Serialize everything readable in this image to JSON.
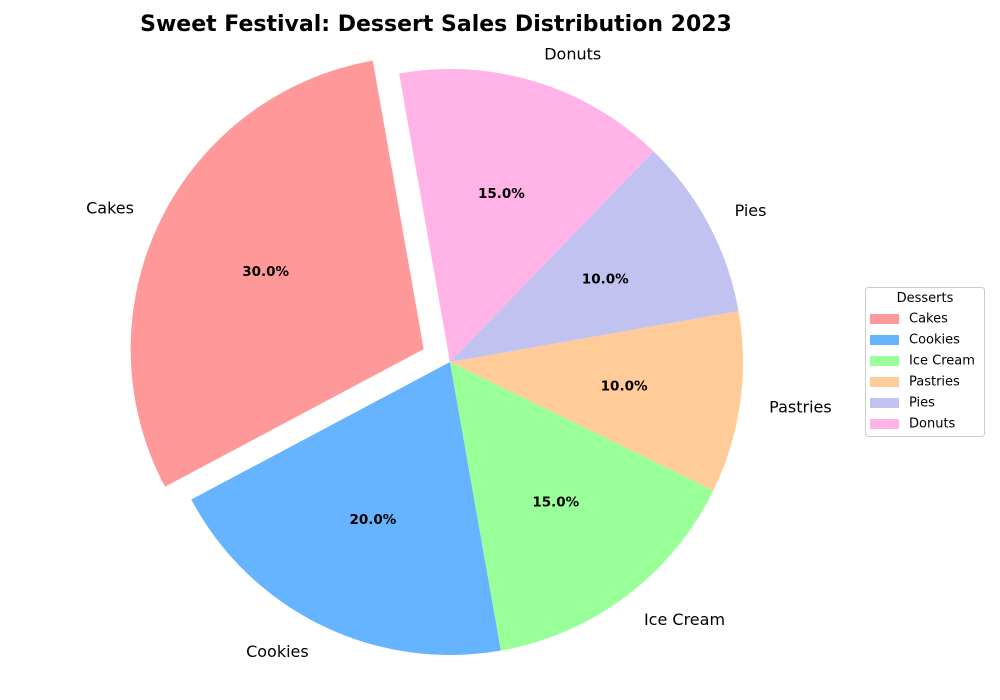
{
  "chart_data": {
    "type": "pie",
    "title": "Sweet Festival: Dessert Sales Distribution 2023",
    "categories": [
      "Cakes",
      "Cookies",
      "Ice Cream",
      "Pastries",
      "Pies",
      "Donuts"
    ],
    "values": [
      30,
      20,
      15,
      10,
      10,
      15
    ],
    "percent_labels": [
      "30.0%",
      "20.0%",
      "15.0%",
      "10.0%",
      "10.0%",
      "15.0%"
    ],
    "colors": [
      "#ff9999",
      "#66b3ff",
      "#99ff99",
      "#ffcc99",
      "#c2c2f0",
      "#ffb3e6"
    ],
    "exploded": [
      "Cakes"
    ],
    "legend": {
      "title": "Desserts",
      "placement": "center-right"
    }
  }
}
